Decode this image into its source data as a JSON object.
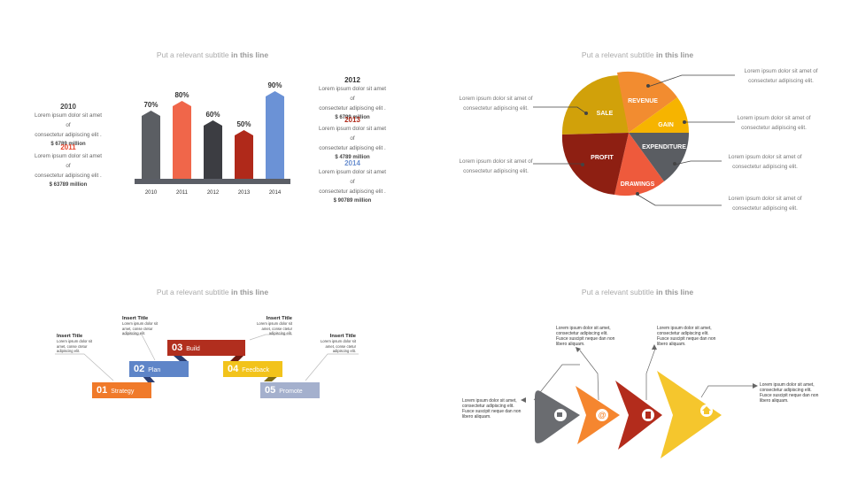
{
  "subtitle": {
    "plain": "Put a relevant subtitle",
    "bold": "in this line"
  },
  "bar_panel": {
    "left_notes": [
      {
        "year": "2010",
        "text1": "Lorem ipsum dolor sit amet of",
        "text2": "consectetur adipiscing elit .",
        "amount": "$ 6789 million",
        "color": "#444444"
      },
      {
        "year": "2011",
        "text1": "Lorem ipsum dolor sit amet of",
        "text2": "consectetur adipiscing elit .",
        "amount": "$ 63789 million",
        "color": "#e8452b"
      }
    ],
    "right_notes": [
      {
        "year": "2012",
        "text1": "Lorem ipsum dolor sit amet of",
        "text2": "consectetur adipiscing elit .",
        "amount": "$ 6799 million",
        "color": "#333333"
      },
      {
        "year": "2013",
        "text1": "Lorem ipsum dolor sit amet of",
        "text2": "consectetur adipiscing elit .",
        "amount": "$ 4789 million",
        "color": "#b02a1a"
      },
      {
        "year": "2014",
        "text1": "Lorem ipsum dolor sit amet of",
        "text2": "consectetur adipiscing elit .",
        "amount": "$ 90789 million",
        "color": "#6a8fd0"
      }
    ]
  },
  "chart_data": {
    "type": "bar",
    "categories": [
      "2010",
      "2011",
      "2012",
      "2013",
      "2014"
    ],
    "values": [
      70,
      80,
      60,
      50,
      90
    ],
    "value_labels": [
      "70%",
      "80%",
      "60%",
      "50%",
      "90%"
    ],
    "colors": [
      "#5b5e63",
      "#f0664a",
      "#3c3d42",
      "#b0291a",
      "#6b92d6"
    ],
    "ylim": [
      0,
      100
    ],
    "title": "",
    "xlabel": "",
    "ylabel": ""
  },
  "pie_panel": {
    "slices": [
      {
        "label": "SALE",
        "color": "#d1a10a"
      },
      {
        "label": "REVENUE",
        "color": "#f28c30"
      },
      {
        "label": "GAIN",
        "color": "#f6b400"
      },
      {
        "label": "EXPENDITURE",
        "color": "#5a5d62"
      },
      {
        "label": "DRAWINGS",
        "color": "#ee5a3c"
      },
      {
        "label": "PROFIT",
        "color": "#8e1f12"
      }
    ],
    "callouts": [
      {
        "t1": "Lorem ipsum dolor sit amet of",
        "t2": "consectetur adipiscing elit."
      },
      {
        "t1": "Lorem ipsum dolor sit amet of",
        "t2": "consectetur adipiscing elit."
      },
      {
        "t1": "Lorem ipsum dolor sit amet of",
        "t2": "consectetur adipiscing elit."
      },
      {
        "t1": "Lorem ipsum dolor sit amet of",
        "t2": "consectetur adipiscing elit."
      },
      {
        "t1": "Lorem ipsum dolor sit amet of",
        "t2": "consectetur adipiscing elit."
      },
      {
        "t1": "Lorem ipsum dolor sit amet of",
        "t2": "consectetur adipiscing elit."
      }
    ]
  },
  "ribbon_panel": {
    "steps": [
      {
        "num": "01",
        "label": "Strategy",
        "color": "#f07a2a"
      },
      {
        "num": "02",
        "label": "Plan",
        "color": "#5e85c8"
      },
      {
        "num": "03",
        "label": "Build",
        "color": "#b12e1e"
      },
      {
        "num": "04",
        "label": "Feedback",
        "color": "#f2c31b"
      },
      {
        "num": "05",
        "label": "Promote",
        "color": "#a4b0cd"
      }
    ],
    "boxes": [
      {
        "title": "Insert Title",
        "l1": "Lorem ipsum dolor sit",
        "l2": "amet, conse ctetur",
        "l3": "adipiscing elit."
      },
      {
        "title": "Insert Title",
        "l1": "Lorem ipsum dolor sit",
        "l2": "amet, conse ctetur",
        "l3": "adipiscing elit."
      },
      {
        "title": "Insert Title",
        "l1": "Lorem ipsum dolor sit",
        "l2": "amet, conse ctetur",
        "l3": "adipiscing elit."
      },
      {
        "title": "Insert Title",
        "l1": "Lorem ipsum dolor sit",
        "l2": "amet, conse ctetur",
        "l3": "adipiscing elit."
      }
    ]
  },
  "arrow_panel": {
    "arrows": [
      {
        "icon": "coffee-icon",
        "color": "#6a6c70"
      },
      {
        "icon": "at-sign-icon",
        "color": "#f5862f"
      },
      {
        "icon": "document-icon",
        "color": "#b32c1c"
      },
      {
        "icon": "home-icon",
        "color": "#f5c62d"
      }
    ],
    "texts": [
      {
        "l1": "Lorem ipsum dolor sit amet,",
        "l2": "consectetur adipiscing elit.",
        "l3": "Fusce suscipit neque dan non",
        "l4": "libero aliquam."
      },
      {
        "l1": "Lorem ipsum dolor sit amet,",
        "l2": "consectetur adipiscing elit.",
        "l3": "Fusce suscipit neque dan non",
        "l4": "libero aliquam."
      },
      {
        "l1": "Lorem ipsum dolor sit amet,",
        "l2": "consectetur adipiscing elit.",
        "l3": "Fusce suscipit neque dan non",
        "l4": "libero aliquam."
      },
      {
        "l1": "Lorem ipsum dolor sit amet,",
        "l2": "consectetur adipiscing elit.",
        "l3": "Fusce suscipit neque dan non",
        "l4": "libero aliquam."
      }
    ]
  }
}
